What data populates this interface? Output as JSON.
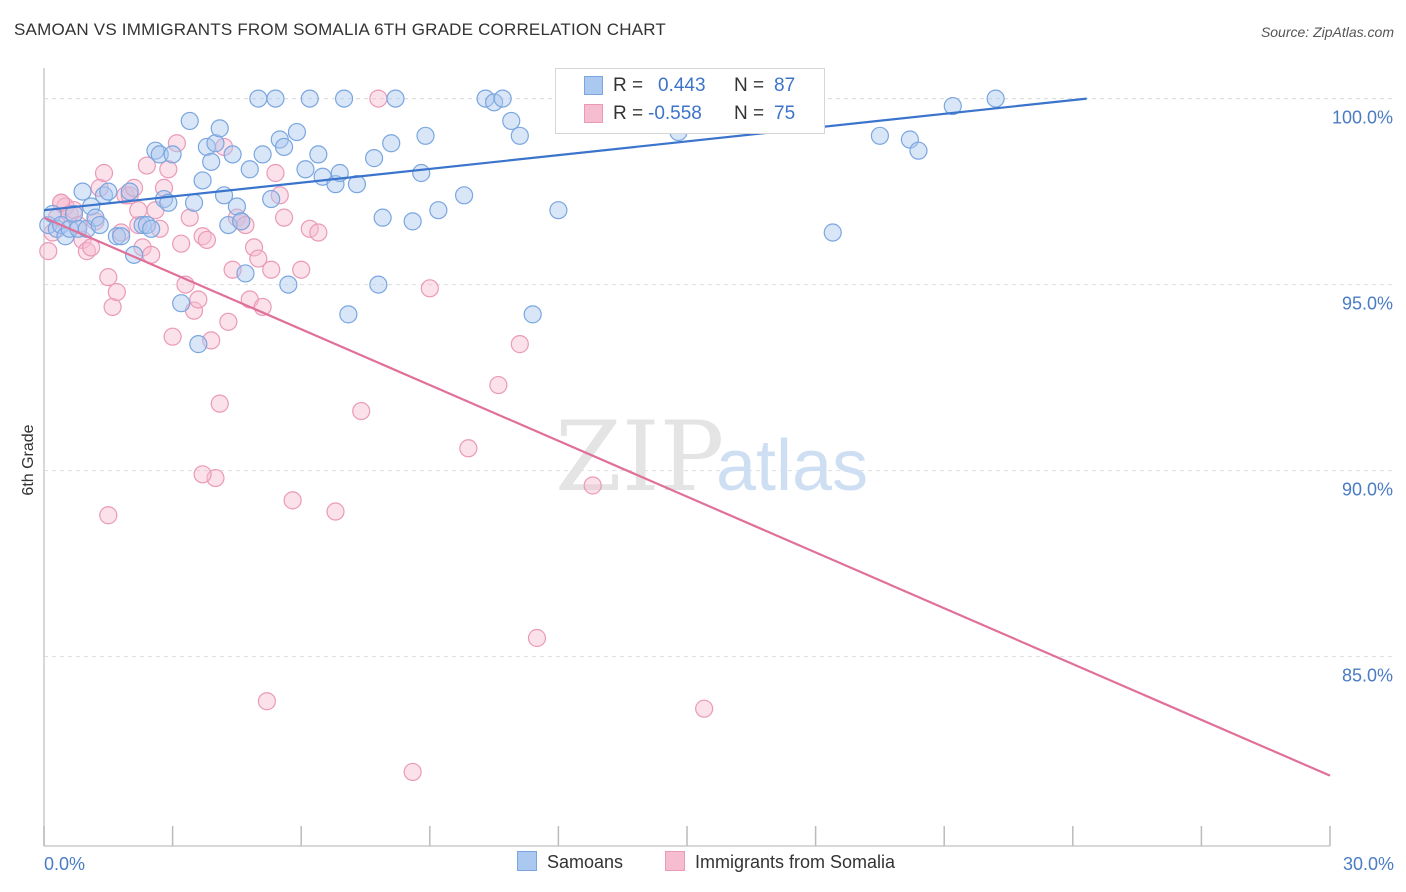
{
  "title": "SAMOAN VS IMMIGRANTS FROM SOMALIA 6TH GRADE CORRELATION CHART",
  "source": "Source: ZipAtlas.com",
  "watermark": {
    "zip": "ZIP",
    "atlas": "atlas"
  },
  "colors": {
    "samoans_fill": "#aac8f0",
    "samoans_stroke": "#7aa6e0",
    "samoans_line": "#3a74cc",
    "somalia_fill": "#f6bcd0",
    "somalia_stroke": "#ea9ab8",
    "somalia_line": "#e0709a",
    "tick_text": "#4a7cc4",
    "grid": "#dddddd"
  },
  "legend": {
    "rows": [
      {
        "r_label": "R =",
        "r_value": "0.443",
        "n_label": "N =",
        "n_value": "87"
      },
      {
        "r_label": "R =",
        "r_value": "-0.558",
        "n_label": "N =",
        "n_value": "75"
      }
    ]
  },
  "bottom_legend": {
    "samoans": "Samoans",
    "somalia": "Immigrants from Somalia"
  },
  "chart_data": {
    "type": "scatter",
    "xlabel": "",
    "ylabel": "6th Grade",
    "xlim": [
      0,
      30
    ],
    "ylim": [
      80.5,
      100.5
    ],
    "x_tick_labels": [
      "0.0%",
      "30.0%"
    ],
    "y_ticks": [
      85,
      90,
      95,
      100
    ],
    "y_tick_labels": [
      "85.0%",
      "90.0%",
      "95.0%",
      "100.0%"
    ],
    "grid": true,
    "series": [
      {
        "name": "Samoans",
        "trend": {
          "x": [
            0,
            30
          ],
          "y": [
            97.0,
            100.7
          ]
        },
        "points": [
          [
            0.1,
            96.6
          ],
          [
            0.2,
            96.9
          ],
          [
            0.3,
            96.5
          ],
          [
            0.4,
            96.6
          ],
          [
            0.5,
            96.3
          ],
          [
            0.6,
            96.5
          ],
          [
            0.7,
            96.9
          ],
          [
            0.8,
            96.5
          ],
          [
            0.9,
            97.5
          ],
          [
            1.0,
            96.5
          ],
          [
            1.1,
            97.1
          ],
          [
            1.2,
            96.8
          ],
          [
            1.3,
            96.6
          ],
          [
            1.4,
            97.4
          ],
          [
            1.5,
            97.5
          ],
          [
            1.7,
            96.3
          ],
          [
            1.8,
            96.3
          ],
          [
            2.0,
            97.5
          ],
          [
            2.1,
            95.8
          ],
          [
            2.3,
            96.6
          ],
          [
            2.4,
            96.6
          ],
          [
            2.5,
            96.5
          ],
          [
            2.6,
            98.6
          ],
          [
            2.7,
            98.5
          ],
          [
            2.8,
            97.3
          ],
          [
            2.9,
            97.2
          ],
          [
            3.0,
            98.5
          ],
          [
            3.2,
            94.5
          ],
          [
            3.4,
            99.4
          ],
          [
            3.5,
            97.2
          ],
          [
            3.6,
            93.4
          ],
          [
            3.7,
            97.8
          ],
          [
            3.8,
            98.7
          ],
          [
            3.9,
            98.3
          ],
          [
            4.0,
            98.8
          ],
          [
            4.1,
            99.2
          ],
          [
            4.2,
            97.4
          ],
          [
            4.3,
            96.6
          ],
          [
            4.4,
            98.5
          ],
          [
            4.5,
            97.1
          ],
          [
            4.6,
            96.7
          ],
          [
            4.7,
            95.3
          ],
          [
            4.8,
            98.1
          ],
          [
            5.0,
            100.0
          ],
          [
            5.1,
            98.5
          ],
          [
            5.3,
            97.3
          ],
          [
            5.4,
            100.0
          ],
          [
            5.5,
            98.9
          ],
          [
            5.6,
            98.7
          ],
          [
            5.7,
            95.0
          ],
          [
            5.9,
            99.1
          ],
          [
            6.1,
            98.1
          ],
          [
            6.2,
            100.0
          ],
          [
            6.4,
            98.5
          ],
          [
            6.5,
            97.9
          ],
          [
            6.8,
            97.7
          ],
          [
            6.9,
            98.0
          ],
          [
            7.0,
            100.0
          ],
          [
            7.1,
            94.2
          ],
          [
            7.3,
            97.7
          ],
          [
            7.7,
            98.4
          ],
          [
            7.8,
            95.0
          ],
          [
            7.9,
            96.8
          ],
          [
            8.1,
            98.8
          ],
          [
            8.2,
            100.0
          ],
          [
            8.6,
            96.7
          ],
          [
            8.8,
            98.0
          ],
          [
            8.9,
            99.0
          ],
          [
            9.2,
            97.0
          ],
          [
            9.8,
            97.4
          ],
          [
            10.3,
            100.0
          ],
          [
            10.5,
            99.9
          ],
          [
            10.7,
            100.0
          ],
          [
            10.9,
            99.4
          ],
          [
            11.1,
            99.0
          ],
          [
            11.4,
            94.2
          ],
          [
            12.0,
            97.0
          ],
          [
            14.2,
            100.0
          ],
          [
            14.8,
            99.1
          ],
          [
            15.0,
            99.8
          ],
          [
            15.3,
            100.0
          ],
          [
            18.4,
            96.4
          ],
          [
            19.5,
            99.0
          ],
          [
            20.2,
            98.9
          ],
          [
            20.4,
            98.6
          ],
          [
            21.2,
            99.8
          ],
          [
            22.2,
            100.0
          ]
        ]
      },
      {
        "name": "Immigrants from Somalia",
        "trend": {
          "x": [
            0,
            30
          ],
          "y": [
            96.8,
            81.8
          ]
        },
        "points": [
          [
            0.1,
            95.9
          ],
          [
            0.2,
            96.4
          ],
          [
            0.3,
            96.8
          ],
          [
            0.4,
            97.2
          ],
          [
            0.5,
            97.1
          ],
          [
            0.6,
            96.9
          ],
          [
            0.7,
            97.0
          ],
          [
            0.8,
            96.6
          ],
          [
            0.9,
            96.2
          ],
          [
            1.0,
            95.9
          ],
          [
            1.1,
            96.0
          ],
          [
            1.2,
            96.7
          ],
          [
            1.3,
            97.6
          ],
          [
            1.4,
            98.0
          ],
          [
            1.5,
            95.2
          ],
          [
            1.6,
            94.4
          ],
          [
            1.7,
            94.8
          ],
          [
            1.8,
            96.4
          ],
          [
            1.9,
            97.4
          ],
          [
            2.0,
            97.4
          ],
          [
            2.1,
            97.6
          ],
          [
            2.2,
            96.6
          ],
          [
            2.3,
            96.0
          ],
          [
            2.4,
            98.2
          ],
          [
            2.5,
            95.8
          ],
          [
            2.6,
            97.0
          ],
          [
            2.7,
            96.5
          ],
          [
            2.8,
            97.6
          ],
          [
            2.9,
            98.1
          ],
          [
            3.0,
            93.6
          ],
          [
            3.1,
            98.8
          ],
          [
            3.2,
            96.1
          ],
          [
            3.3,
            95.0
          ],
          [
            3.4,
            96.8
          ],
          [
            3.5,
            94.3
          ],
          [
            3.6,
            94.6
          ],
          [
            3.7,
            96.3
          ],
          [
            3.8,
            96.2
          ],
          [
            3.9,
            93.5
          ],
          [
            4.0,
            89.8
          ],
          [
            4.1,
            91.8
          ],
          [
            4.2,
            98.7
          ],
          [
            4.3,
            94.0
          ],
          [
            4.4,
            95.4
          ],
          [
            4.5,
            96.8
          ],
          [
            4.6,
            96.7
          ],
          [
            4.7,
            96.6
          ],
          [
            4.8,
            94.6
          ],
          [
            4.9,
            96.0
          ],
          [
            5.0,
            95.7
          ],
          [
            5.1,
            94.4
          ],
          [
            5.2,
            83.8
          ],
          [
            5.3,
            95.4
          ],
          [
            5.4,
            98.0
          ],
          [
            5.5,
            97.4
          ],
          [
            5.6,
            96.8
          ],
          [
            5.8,
            89.2
          ],
          [
            6.0,
            95.4
          ],
          [
            6.2,
            96.5
          ],
          [
            6.4,
            96.4
          ],
          [
            6.8,
            88.9
          ],
          [
            7.4,
            91.6
          ],
          [
            7.8,
            100.0
          ],
          [
            8.6,
            81.9
          ],
          [
            9.0,
            94.9
          ],
          [
            9.9,
            90.6
          ],
          [
            10.6,
            92.3
          ],
          [
            11.1,
            93.4
          ],
          [
            11.5,
            85.5
          ],
          [
            12.8,
            89.6
          ],
          [
            15.4,
            83.6
          ],
          [
            1.5,
            88.8
          ],
          [
            3.7,
            89.9
          ],
          [
            2.2,
            97.0
          ],
          [
            0.4,
            97.2
          ]
        ]
      }
    ]
  }
}
